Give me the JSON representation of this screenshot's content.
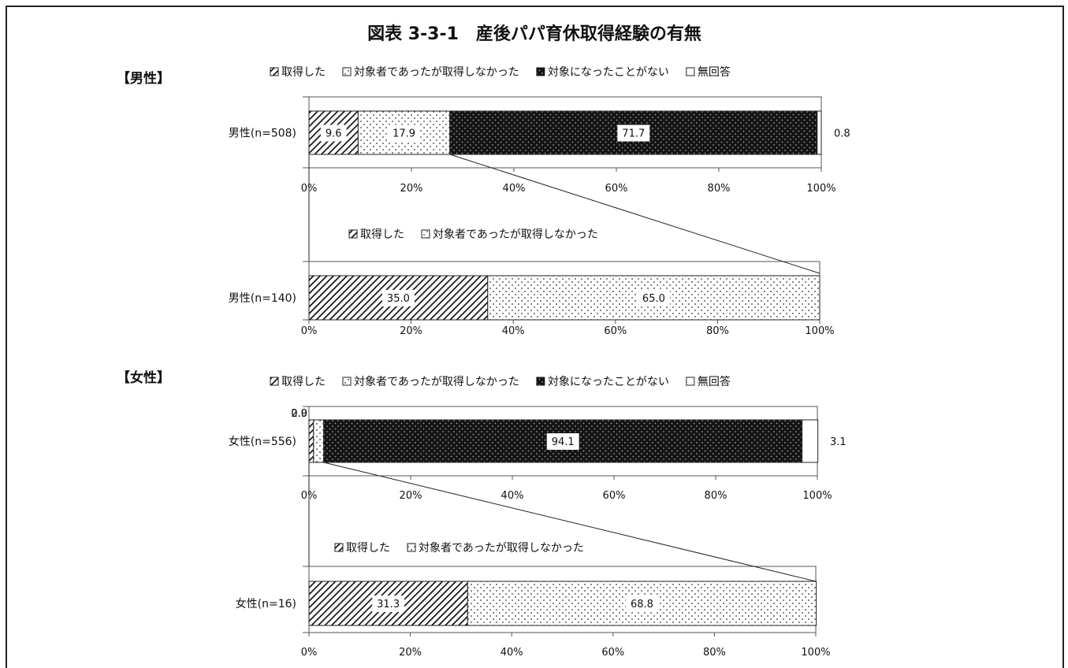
{
  "figure": {
    "title": "図表 3-3-1　産後パパ育休取得経験の有無",
    "sections": {
      "male": "【男性】",
      "female": "【女性】"
    }
  },
  "legend": {
    "acquired": "取得した",
    "eligible_not_acquired": "対象者であったが取得しなかった",
    "never_eligible": "対象になったことがない",
    "no_answer": "無回答"
  },
  "colors": {
    "bar_dark": "#1a1a1a",
    "bar_stroke": "#222222",
    "axis": "#555555"
  },
  "chart_data": [
    {
      "type": "bar",
      "orientation": "horizontal",
      "stacked": true,
      "category": "男性(n=508)",
      "series": [
        {
          "name": "取得した",
          "values": [
            9.6
          ]
        },
        {
          "name": "対象者であったが取得しなかった",
          "values": [
            17.9
          ]
        },
        {
          "name": "対象になったことがない",
          "values": [
            71.7
          ]
        },
        {
          "name": "無回答",
          "values": [
            0.8
          ]
        }
      ],
      "value_labels": [
        "9.6",
        "17.9",
        "71.7",
        "0.8"
      ],
      "xlim": [
        0,
        100
      ],
      "ticks": [
        "0%",
        "20%",
        "40%",
        "60%",
        "80%",
        "100%"
      ],
      "legend_position": "top"
    },
    {
      "type": "bar",
      "orientation": "horizontal",
      "stacked": true,
      "category": "男性(n=140)",
      "series": [
        {
          "name": "取得した",
          "values": [
            35.0
          ]
        },
        {
          "name": "対象者であったが取得しなかった",
          "values": [
            65.0
          ]
        }
      ],
      "value_labels": [
        "35.0",
        "65.0"
      ],
      "xlim": [
        0,
        100
      ],
      "ticks": [
        "0%",
        "20%",
        "40%",
        "60%",
        "80%",
        "100%"
      ],
      "legend_position": "top"
    },
    {
      "type": "bar",
      "orientation": "horizontal",
      "stacked": true,
      "category": "女性(n=556)",
      "series": [
        {
          "name": "取得した",
          "values": [
            0.9
          ]
        },
        {
          "name": "対象者であったが取得しなかった",
          "values": [
            2.0
          ]
        },
        {
          "name": "対象になったことがない",
          "values": [
            94.1
          ]
        },
        {
          "name": "無回答",
          "values": [
            3.1
          ]
        }
      ],
      "value_labels": [
        "0.9",
        "2.0",
        "94.1",
        "3.1"
      ],
      "xlim": [
        0,
        100
      ],
      "ticks": [
        "0%",
        "20%",
        "40%",
        "60%",
        "80%",
        "100%"
      ],
      "legend_position": "top"
    },
    {
      "type": "bar",
      "orientation": "horizontal",
      "stacked": true,
      "category": "女性(n=16)",
      "series": [
        {
          "name": "取得した",
          "values": [
            31.3
          ]
        },
        {
          "name": "対象者であったが取得しなかった",
          "values": [
            68.8
          ]
        }
      ],
      "value_labels": [
        "31.3",
        "68.8"
      ],
      "xlim": [
        0,
        100
      ],
      "ticks": [
        "0%",
        "20%",
        "40%",
        "60%",
        "80%",
        "100%"
      ],
      "legend_position": "top"
    }
  ]
}
